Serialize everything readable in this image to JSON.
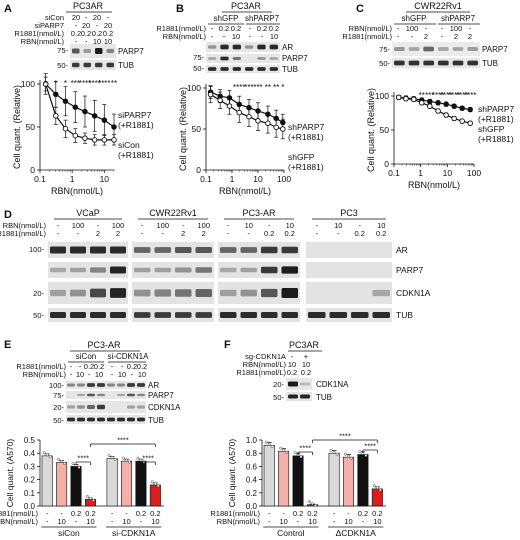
{
  "panels": {
    "A": {
      "letter": "A",
      "cell_line": "PC3AR",
      "rows": [
        {
          "label": "siCon",
          "values": [
            "20",
            "-",
            "20",
            "-"
          ]
        },
        {
          "label": "siPARP7",
          "values": [
            "-",
            "20",
            "-",
            "20"
          ]
        },
        {
          "label": "R1881(nmol/L)",
          "values": [
            "0.2",
            "0.2",
            "0.2",
            "0.2"
          ]
        },
        {
          "label": "RBN(nmol/L)",
          "values": [
            "-",
            "-",
            "10",
            "10"
          ]
        }
      ],
      "blot_marks": [
        "75-",
        "50-"
      ],
      "blot_labels": [
        "PARP7",
        "TUB"
      ],
      "series_labels": [
        [
          "siPARP7",
          "(+R1881)"
        ],
        [
          "siCon",
          "(+R1881)"
        ]
      ]
    },
    "B": {
      "letter": "B",
      "cell_line": "PC3AR",
      "groups": [
        "shGFP",
        "shPARP7"
      ],
      "rows": [
        {
          "label": "R1881(nmol/L)",
          "values": [
            "-",
            "0.2",
            "0.2",
            "-",
            "0.2",
            "0.2"
          ]
        },
        {
          "label": "RBN(nmol/L)",
          "values": [
            "-",
            "-",
            "10",
            "-",
            "-",
            "10"
          ]
        }
      ],
      "blot_marks": [
        "75-",
        "50-"
      ],
      "blot_labels": [
        "AR",
        "PARP7",
        "TUB"
      ],
      "series_labels": [
        [
          "shPARP7",
          "(+R1881)"
        ],
        [
          "shGFP",
          "(+R1881)"
        ]
      ]
    },
    "C": {
      "letter": "C",
      "cell_line": "CWR22Rv1",
      "groups": [
        "shGFP",
        "shPARP7"
      ],
      "rows": [
        {
          "label": "RBN(nmol/L)",
          "values": [
            "-",
            "100",
            "-",
            "-",
            "100",
            "-"
          ]
        },
        {
          "label": "R1881(nmol/L)",
          "values": [
            "-",
            "-",
            "2",
            "-",
            "2",
            "2"
          ]
        }
      ],
      "blot_marks": [
        "75-",
        "50-"
      ],
      "blot_labels": [
        "PARP7",
        "TUB"
      ],
      "series_labels": [
        [
          "shPARP7",
          "(+R1881)"
        ],
        [
          "shGFP",
          "(+R1881)"
        ]
      ]
    },
    "D": {
      "letter": "D",
      "cell_lines": [
        "VCaP",
        "CWR22Rv1",
        "PC3-AR",
        "PC3"
      ],
      "rows": [
        {
          "label": "RBN(nmol/L)",
          "values": [
            "-",
            "100",
            "-",
            "100",
            "-",
            "100",
            "-",
            "100",
            "-",
            "10",
            "-",
            "10",
            "-",
            "10",
            "-",
            "10"
          ]
        },
        {
          "label": "R1881(nmol/L)",
          "values": [
            "-",
            "-",
            "2",
            "2",
            "-",
            "-",
            "2",
            "2",
            "-",
            "-",
            "0.2",
            "0.2",
            "-",
            "-",
            "0.2",
            "0.2"
          ]
        }
      ],
      "blot_marks": [
        "100-",
        "20-",
        "50-"
      ],
      "blot_labels": [
        "AR",
        "PARP7",
        "CDKN1A",
        "TUB"
      ]
    },
    "E": {
      "letter": "E",
      "cell_line": "PC3-AR",
      "groups": [
        "siCon",
        "si-CDKN1A"
      ],
      "rows": [
        {
          "label": "R1881(nmol/L)",
          "values": [
            "-",
            "-",
            "0.2",
            "0.2",
            "-",
            "-",
            "0.2",
            "0.2"
          ]
        },
        {
          "label": "RBN(nmol/L)",
          "values": [
            "-",
            "10",
            "-",
            "10",
            "-",
            "10",
            "-",
            "10"
          ]
        }
      ],
      "blot_marks": [
        "100-",
        "75-",
        "20-",
        "50-"
      ],
      "blot_labels": [
        "AR",
        "PARP7",
        "CDKN1A",
        "TUB"
      ],
      "bottom_rows": [
        {
          "label": "R1881(nmol/L)",
          "values": [
            "-",
            "-",
            "0.2",
            "0.2",
            "-",
            "-",
            "0.2",
            "0.2"
          ]
        },
        {
          "label": "RBN(nmol/L)",
          "values": [
            "-",
            "10",
            "-",
            "10",
            "-",
            "10",
            "-",
            "10"
          ]
        }
      ],
      "group_labels": [
        "siCon",
        "si-CDKN1A"
      ],
      "sig": [
        "****",
        "****",
        "****"
      ]
    },
    "F": {
      "letter": "F",
      "cell_line": "PC3AR",
      "rows": [
        {
          "label": "sg-CDKN1A",
          "values": [
            "-",
            "+"
          ]
        },
        {
          "label": "RBN(nmol/L)",
          "values": [
            "10",
            "10"
          ]
        },
        {
          "label": "R1881(nmol/L)",
          "values": [
            "0.2",
            "0.2"
          ]
        }
      ],
      "blot_marks": [
        "20-",
        "50-"
      ],
      "blot_labels": [
        "CDK1NA",
        "TUB"
      ],
      "bottom_rows": [
        {
          "label": "R1881(nmol/L)",
          "values": [
            "-",
            "-",
            "0.2",
            "0.2",
            "-",
            "-",
            "0.2",
            "0.2"
          ]
        },
        {
          "label": "RBN(nmol/L)",
          "values": [
            "-",
            "10",
            "-",
            "10",
            "-",
            "10",
            "-",
            "10"
          ]
        }
      ],
      "group_labels": [
        "Control",
        "ΔCDKN1A"
      ],
      "sig": [
        "****",
        "****",
        "****"
      ]
    }
  },
  "chart_data": [
    {
      "panel": "A",
      "type": "line",
      "xlabel": "RBN(nmol/L)",
      "ylabel": "Cell quant. (Relative)",
      "xscale": "log",
      "xlim": [
        0.1,
        20
      ],
      "ylim": [
        0,
        100
      ],
      "xticks": [
        0.1,
        1,
        10
      ],
      "xticklabels": [
        "0.1",
        "1",
        "10"
      ],
      "yticks": [
        0,
        50,
        100
      ],
      "yticklabels": [
        "0",
        "50",
        "100"
      ],
      "x": [
        0.15,
        0.31,
        0.62,
        1.25,
        2.5,
        5,
        10,
        20
      ],
      "series": [
        {
          "y": [
            100,
            88,
            80,
            73,
            68,
            63,
            58,
            50
          ],
          "err": [
            12,
            15,
            17,
            18,
            18,
            18,
            18,
            15
          ],
          "marker": "filled",
          "color": "#111111"
        },
        {
          "y": [
            100,
            63,
            48,
            40,
            37,
            35,
            35,
            35
          ],
          "err": [
            8,
            10,
            10,
            8,
            6,
            6,
            6,
            6
          ],
          "marker": "open",
          "color": "#111111"
        }
      ],
      "sig": [
        "*",
        "*",
        "*",
        "***",
        "****",
        "****",
        "****",
        "**"
      ]
    },
    {
      "panel": "B",
      "type": "line",
      "xlabel": "RBN(nmol/L)",
      "ylabel": "Cell quant. (Relative)",
      "xscale": "log",
      "xlim": [
        0.1,
        100
      ],
      "ylim": [
        0,
        100
      ],
      "xticks": [
        0.1,
        1,
        10,
        100
      ],
      "xticklabels": [
        "0.1",
        "1",
        "10",
        "100"
      ],
      "yticks": [
        0,
        50,
        100
      ],
      "yticklabels": [
        "0",
        "50",
        "100"
      ],
      "x": [
        0.15,
        0.35,
        0.8,
        1.9,
        4.5,
        10,
        24,
        50,
        90
      ],
      "series": [
        {
          "y": [
            95,
            90,
            88,
            80,
            76,
            72,
            68,
            63,
            58
          ],
          "err": [
            8,
            8,
            9,
            10,
            10,
            10,
            10,
            10,
            10
          ],
          "marker": "filled",
          "color": "#111111"
        },
        {
          "y": [
            92,
            85,
            78,
            70,
            65,
            60,
            57,
            52,
            50
          ],
          "err": [
            10,
            10,
            10,
            12,
            12,
            12,
            12,
            12,
            12
          ],
          "marker": "open",
          "color": "#111111"
        }
      ],
      "sig": [
        "****",
        "***",
        "***",
        "**",
        "**",
        "*"
      ]
    },
    {
      "panel": "C",
      "type": "line",
      "xlabel": "RBN(nmol/L)",
      "ylabel": "Cell quant. (Relative)",
      "xscale": "log",
      "xlim": [
        0.1,
        100
      ],
      "ylim": [
        0,
        100
      ],
      "xticks": [
        0.1,
        1,
        10,
        100
      ],
      "xticklabels": [
        "0.1",
        "1",
        "10",
        "100"
      ],
      "yticks": [
        0,
        50,
        100
      ],
      "yticklabels": [
        "0",
        "50",
        "100"
      ],
      "x": [
        0.15,
        0.28,
        0.55,
        1.1,
        2.2,
        4.5,
        9,
        18,
        36,
        72
      ],
      "series": [
        {
          "y": [
            98,
            97,
            96,
            94,
            92,
            90,
            88,
            85,
            82,
            80
          ],
          "err": [
            3,
            3,
            3,
            3,
            3,
            3,
            3,
            3,
            3,
            3
          ],
          "marker": "filled",
          "color": "#111111"
        },
        {
          "y": [
            98,
            96,
            95,
            90,
            85,
            78,
            72,
            67,
            63,
            60
          ],
          "err": [
            3,
            3,
            3,
            3,
            3,
            3,
            3,
            3,
            3,
            3
          ],
          "marker": "open",
          "color": "#111111"
        }
      ],
      "sig": [
        "**",
        "***",
        "****",
        "****",
        "****",
        "****",
        "****"
      ]
    },
    {
      "panel": "E",
      "type": "bar",
      "ylabel": "Cell quant. (A570)",
      "ylim": [
        0,
        0.5
      ],
      "yticks": [
        0,
        0.1,
        0.2,
        0.3,
        0.4,
        0.5
      ],
      "yticklabels": [
        "0.0",
        "0.1",
        "0.2",
        "0.3",
        "0.4",
        "0.5"
      ],
      "values": [
        0.38,
        0.33,
        0.3,
        0.05,
        0.36,
        0.34,
        0.34,
        0.16
      ],
      "err": [
        0.015,
        0.015,
        0.015,
        0.01,
        0.015,
        0.015,
        0.015,
        0.015
      ],
      "colors": [
        "#d9d9d9",
        "#f4b0a8",
        "#111111",
        "#d81e1e",
        "#d9d9d9",
        "#f4b0a8",
        "#111111",
        "#d81e1e"
      ]
    },
    {
      "panel": "F",
      "type": "bar",
      "ylabel": "Cell quant. (A570)",
      "ylim": [
        0,
        1.0
      ],
      "yticks": [
        0,
        0.2,
        0.4,
        0.6,
        0.8,
        1.0
      ],
      "yticklabels": [
        "0.0",
        "0.2",
        "0.4",
        "0.6",
        "0.8",
        "1.0"
      ],
      "values": [
        0.92,
        0.83,
        0.76,
        0.02,
        0.8,
        0.74,
        0.78,
        0.26
      ],
      "err": [
        0.04,
        0.04,
        0.04,
        0.01,
        0.04,
        0.04,
        0.04,
        0.03
      ],
      "colors": [
        "#d9d9d9",
        "#f4b0a8",
        "#111111",
        "#d81e1e",
        "#d9d9d9",
        "#f4b0a8",
        "#111111",
        "#d81e1e"
      ]
    }
  ]
}
